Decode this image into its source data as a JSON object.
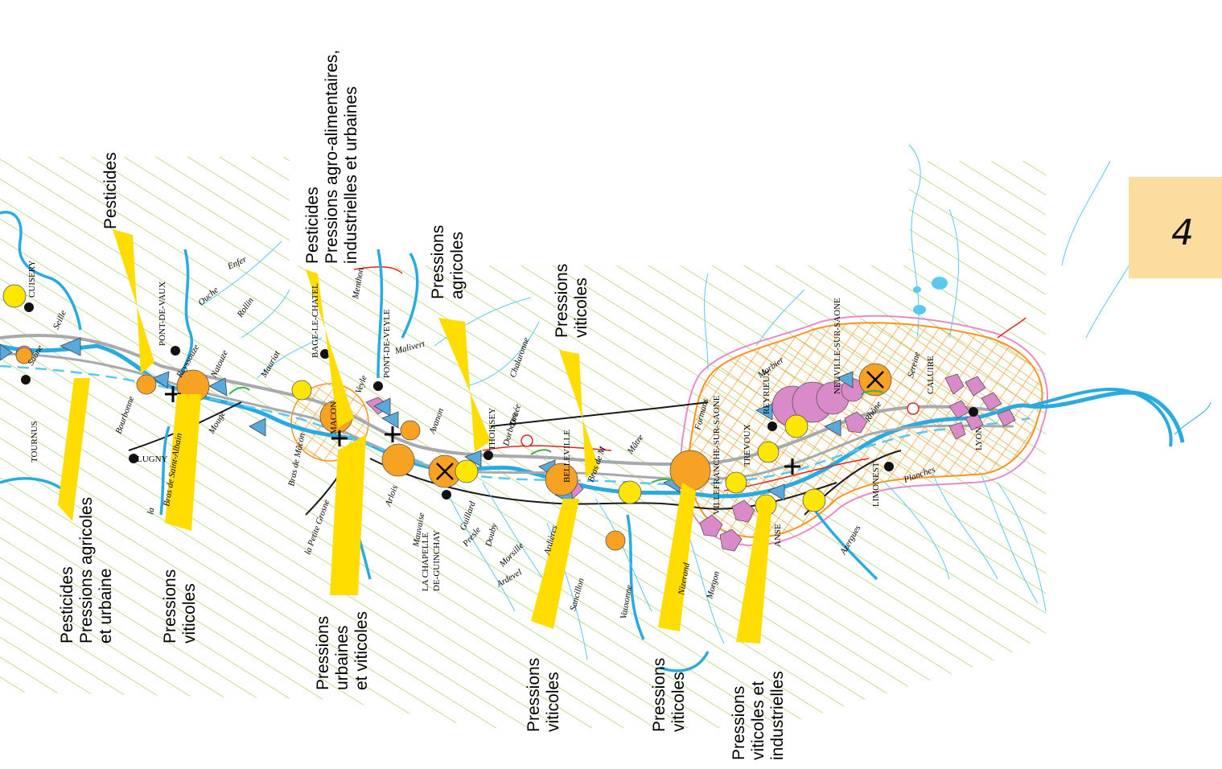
{
  "page_number": "4",
  "colors": {
    "hatch": "#8cc63f",
    "river": "#29abe2",
    "river_small": "#5bc8ef",
    "arrow": "#ffdd00",
    "station_orange": "#f7a223",
    "station_yellow": "#ffe600",
    "pink": "#d98ac8",
    "triangle": "#5aa9dc",
    "road_grey": "#a7a9ac",
    "urban_hatch": "#f7941d",
    "urban_outline": "#e68ac9",
    "page_tab": "#fcdc9f"
  },
  "annotations": [
    {
      "id": "a1",
      "lines": [
        "Pesticides",
        "Pressions agricoles",
        "et urbaine"
      ]
    },
    {
      "id": "a2",
      "lines": [
        "Pesticides"
      ]
    },
    {
      "id": "a3",
      "lines": [
        "Pressions",
        "viticoles"
      ]
    },
    {
      "id": "a4",
      "lines": [
        "Pesticides",
        "Pressions agro-alimentaires,",
        "industrielles et urbaines"
      ]
    },
    {
      "id": "a5",
      "lines": [
        "Pressions",
        "urbaines",
        "et viticoles"
      ]
    },
    {
      "id": "a6",
      "lines": [
        "Pressions",
        "agricoles"
      ]
    },
    {
      "id": "a7",
      "lines": [
        "Pressions",
        "viticoles"
      ]
    },
    {
      "id": "a8",
      "lines": [
        "Pressions",
        "viticoles"
      ]
    },
    {
      "id": "a9",
      "lines": [
        "Pressions",
        "viticoles"
      ]
    },
    {
      "id": "a10",
      "lines": [
        "Pressions",
        "viticoles et",
        "industrielles"
      ]
    }
  ],
  "towns": {
    "cuisery": "CUISERY",
    "tournus": "TOURNUS",
    "pont_de_vaux": "PONT-DE-VAUX",
    "lugny": "LUGNY",
    "bage": "BAGE-LE-CHATEL",
    "macon": "MACON",
    "pont_de_veyle": "PONT-DE-VEYLE",
    "thoissey": "THOISSEY",
    "la_chapelle": "LA CHAPELLE",
    "de_guinchay": "DE-GUINCHAY",
    "belleville": "BELLEVILLE",
    "villefranche": "VILLEFRANCHE-SUR-SAONE",
    "trevoux": "TREVOUX",
    "reyrieux": "REYRIEUX",
    "neuville": "NEUVILLE-SUR-SAONE",
    "anse": "ANSE",
    "limonest": "LIMONEST",
    "caluire": "CALUIRE",
    "lyon": "LYON"
  },
  "rivers": {
    "saone": "Saône",
    "seille": "Seille",
    "bourbonne": "Bourbonne",
    "reyssouze": "Reyssouze",
    "ouche": "Ouche",
    "enfer": "Enfer",
    "rollin": "Rollin",
    "mouge": "Mouge",
    "natouze": "Natouze",
    "bras_st_albain": "Bras de Saint-Albain",
    "la": "la",
    "mauriat": "Mauriat",
    "bras_de_macon": "Bras de Mâcon",
    "la_petite_grosne": "la Petite Grosne",
    "veyle": "Veyle",
    "menthon": "Menthon",
    "malivert": "Malivert",
    "avanon": "Avanon",
    "arlois": "Arlois",
    "mauvaise": "Mauvaise",
    "guillard": "Guillard",
    "chalaronne": "Chalaronne",
    "dorbetan": "Dorbetan",
    "draee": "Draée",
    "bras_de_m": "Bras de M",
    "mattre": "Mâtre",
    "formans": "Formans",
    "morbier": "Morbier",
    "ardevel": "Ardevel",
    "morsille": "Morsille",
    "douby": "Douby",
    "presle": "Presle",
    "ardieres": "Ardières",
    "sancillon": "Sancillon",
    "vauxonne": "Vauxonne",
    "nizerand": "Nizerand",
    "morgon": "Morgon",
    "azergues": "Azergues",
    "planches": "Planches",
    "rhone": "Rhône",
    "sereine": "Sereine"
  }
}
